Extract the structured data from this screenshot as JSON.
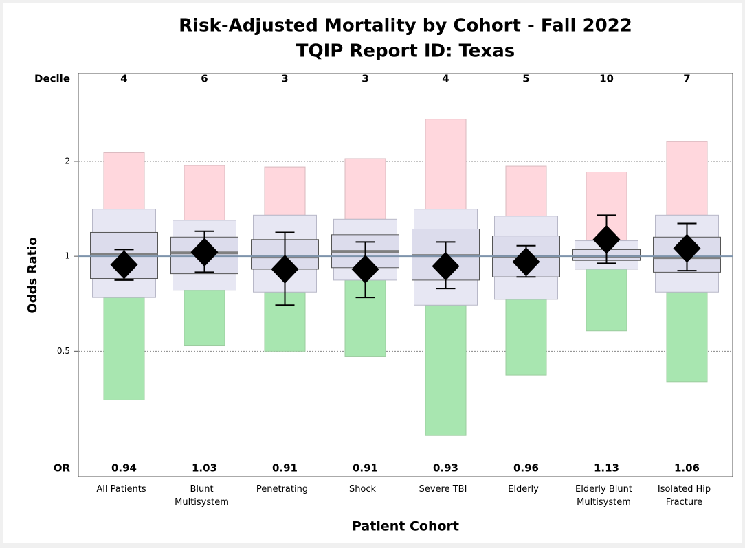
{
  "chart_data": {
    "type": "funnel-box",
    "title": "Risk-Adjusted Mortality by Cohort - Fall 2022",
    "subtitle": "TQIP Report ID: Texas",
    "y_label": "Odds Ratio",
    "x_label": "Patient Cohort",
    "decile_label": "Decile",
    "or_label": "OR",
    "log_scale": true,
    "grid": true,
    "ylim": [
      0.2,
      3.8
    ],
    "yticks": [
      0.5,
      1,
      2
    ],
    "reference_value": 1,
    "categories": [
      "All Patients",
      "Blunt Multisystem",
      "Penetrating",
      "Shock",
      "Severe TBI",
      "Elderly",
      "Elderly Blunt Multisystem",
      "Isolated Hip Fracture"
    ],
    "deciles": [
      4,
      6,
      3,
      3,
      4,
      5,
      10,
      7
    ],
    "or_values": [
      0.94,
      1.03,
      0.91,
      0.91,
      0.93,
      0.96,
      1.13,
      1.06
    ],
    "ci_high": [
      1.05,
      1.2,
      1.19,
      1.11,
      1.11,
      1.08,
      1.35,
      1.27
    ],
    "ci_low": [
      0.84,
      0.89,
      0.7,
      0.74,
      0.79,
      0.86,
      0.95,
      0.9
    ],
    "red_top": [
      2.13,
      1.94,
      1.92,
      2.04,
      2.72,
      1.93,
      1.85,
      2.31
    ],
    "outer_top": [
      1.41,
      1.3,
      1.35,
      1.31,
      1.41,
      1.34,
      1.12,
      1.35
    ],
    "inner_top": [
      1.19,
      1.15,
      1.13,
      1.17,
      1.22,
      1.16,
      1.05,
      1.15
    ],
    "median": [
      1.015,
      1.025,
      0.995,
      1.036,
      1.005,
      1.0,
      1.0,
      0.99
    ],
    "inner_bottom": [
      0.85,
      0.88,
      0.91,
      0.92,
      0.84,
      0.86,
      0.97,
      0.89
    ],
    "outer_bottom": [
      0.74,
      0.78,
      0.77,
      0.84,
      0.7,
      0.73,
      0.91,
      0.77
    ],
    "green_bottom": [
      0.35,
      0.52,
      0.5,
      0.48,
      0.27,
      0.42,
      0.58,
      0.4
    ],
    "colors": {
      "red": "#ffd7dd",
      "green": "#a8e6b0",
      "outer": "#e7e7f3",
      "inner": "#dcdcec",
      "median": "#808080",
      "reference": "#7d93ab",
      "marker": "#000000"
    }
  }
}
